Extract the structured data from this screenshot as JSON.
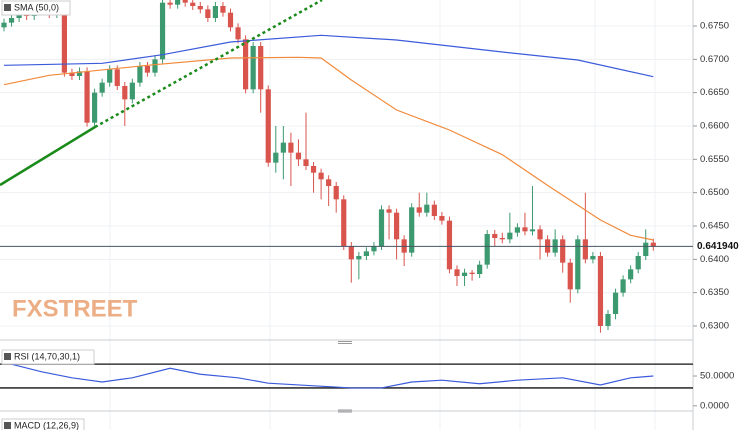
{
  "chart_data": {
    "type": "candlestick",
    "indicator_label": "SMA (50,0)",
    "watermark": "FXSTREET",
    "up_color": "#3d9970",
    "down_color": "#d9544d",
    "ylim": [
      0.6282,
      0.6789
    ],
    "yticks": [
      {
        "value": 0.63,
        "label": "0.6300"
      },
      {
        "value": 0.635,
        "label": "0.6350"
      },
      {
        "value": 0.64,
        "label": "0.6400"
      },
      {
        "value": 0.645,
        "label": "0.6450"
      },
      {
        "value": 0.65,
        "label": "0.6500"
      },
      {
        "value": 0.655,
        "label": "0.6550"
      },
      {
        "value": 0.66,
        "label": "0.6600"
      },
      {
        "value": 0.665,
        "label": "0.6650"
      },
      {
        "value": 0.67,
        "label": "0.6700"
      },
      {
        "value": 0.675,
        "label": "0.6750"
      }
    ],
    "last_price": {
      "value": 0.64194,
      "label": "0.641940"
    },
    "candles": [
      [
        0.6748,
        0.6761,
        0.6742,
        0.6755
      ],
      [
        0.6755,
        0.6768,
        0.6749,
        0.6762
      ],
      [
        0.6762,
        0.6776,
        0.6756,
        0.677
      ],
      [
        0.677,
        0.6776,
        0.6759,
        0.6765
      ],
      [
        0.6765,
        0.6778,
        0.6759,
        0.6772
      ],
      [
        0.6772,
        0.6784,
        0.6766,
        0.6778
      ],
      [
        0.6778,
        0.6784,
        0.6762,
        0.6768
      ],
      [
        0.6768,
        0.678,
        0.6762,
        0.6774
      ],
      [
        0.6774,
        0.678,
        0.6674,
        0.668
      ],
      [
        0.668,
        0.6686,
        0.6669,
        0.6675
      ],
      [
        0.6675,
        0.6688,
        0.6669,
        0.6682
      ],
      [
        0.6682,
        0.6688,
        0.6599,
        0.6605
      ],
      [
        0.6605,
        0.6656,
        0.6599,
        0.665
      ],
      [
        0.665,
        0.6671,
        0.6644,
        0.6665
      ],
      [
        0.6665,
        0.6691,
        0.6659,
        0.6685
      ],
      [
        0.6685,
        0.6691,
        0.6654,
        0.666
      ],
      [
        0.666,
        0.6666,
        0.66,
        0.664
      ],
      [
        0.664,
        0.6671,
        0.6634,
        0.6665
      ],
      [
        0.6665,
        0.6696,
        0.6659,
        0.669
      ],
      [
        0.669,
        0.6696,
        0.6674,
        0.668
      ],
      [
        0.668,
        0.6706,
        0.6674,
        0.67
      ],
      [
        0.67,
        0.6791,
        0.6694,
        0.6785
      ],
      [
        0.6785,
        0.6791,
        0.6776,
        0.6782
      ],
      [
        0.6782,
        0.6796,
        0.6776,
        0.679
      ],
      [
        0.679,
        0.6796,
        0.6779,
        0.6785
      ],
      [
        0.6785,
        0.6791,
        0.6774,
        0.678
      ],
      [
        0.678,
        0.6786,
        0.6769,
        0.6775
      ],
      [
        0.6775,
        0.6781,
        0.6756,
        0.6762
      ],
      [
        0.6762,
        0.6786,
        0.6756,
        0.678
      ],
      [
        0.678,
        0.6786,
        0.6764,
        0.677
      ],
      [
        0.677,
        0.6776,
        0.6742,
        0.6748
      ],
      [
        0.6748,
        0.6754,
        0.6724,
        0.673
      ],
      [
        0.673,
        0.6736,
        0.6649,
        0.6655
      ],
      [
        0.6655,
        0.6726,
        0.6649,
        0.672
      ],
      [
        0.672,
        0.6726,
        0.662,
        0.6655
      ],
      [
        0.6655,
        0.6661,
        0.6539,
        0.6545
      ],
      [
        0.6545,
        0.66,
        0.653,
        0.656
      ],
      [
        0.656,
        0.66,
        0.652,
        0.6575
      ],
      [
        0.6575,
        0.659,
        0.651,
        0.656
      ],
      [
        0.656,
        0.658,
        0.654,
        0.655
      ],
      [
        0.655,
        0.662,
        0.6534,
        0.654
      ],
      [
        0.654,
        0.6546,
        0.65,
        0.653
      ],
      [
        0.653,
        0.6536,
        0.649,
        0.652
      ],
      [
        0.652,
        0.6526,
        0.648,
        0.651
      ],
      [
        0.651,
        0.6516,
        0.647,
        0.649
      ],
      [
        0.649,
        0.6496,
        0.6414,
        0.642
      ],
      [
        0.642,
        0.6426,
        0.6365,
        0.64
      ],
      [
        0.64,
        0.6411,
        0.637,
        0.6405
      ],
      [
        0.6405,
        0.6418,
        0.6399,
        0.6412
      ],
      [
        0.6412,
        0.6426,
        0.6406,
        0.642
      ],
      [
        0.642,
        0.6481,
        0.6414,
        0.6475
      ],
      [
        0.6475,
        0.6481,
        0.643,
        0.647
      ],
      [
        0.647,
        0.6476,
        0.64,
        0.643
      ],
      [
        0.643,
        0.6436,
        0.639,
        0.641
      ],
      [
        0.641,
        0.6484,
        0.6404,
        0.6478
      ],
      [
        0.6478,
        0.65,
        0.6464,
        0.647
      ],
      [
        0.647,
        0.65,
        0.6464,
        0.6482
      ],
      [
        0.6482,
        0.6488,
        0.6459,
        0.6465
      ],
      [
        0.6465,
        0.6471,
        0.6452,
        0.6458
      ],
      [
        0.6458,
        0.6464,
        0.6379,
        0.6385
      ],
      [
        0.6385,
        0.6391,
        0.636,
        0.6375
      ],
      [
        0.6375,
        0.6386,
        0.636,
        0.638
      ],
      [
        0.638,
        0.6384,
        0.6368,
        0.6378
      ],
      [
        0.6378,
        0.6398,
        0.6372,
        0.6392
      ],
      [
        0.6392,
        0.6444,
        0.6386,
        0.6438
      ],
      [
        0.6438,
        0.6444,
        0.642,
        0.6432
      ],
      [
        0.6432,
        0.644,
        0.6424,
        0.643
      ],
      [
        0.643,
        0.647,
        0.6424,
        0.644
      ],
      [
        0.644,
        0.6454,
        0.6434,
        0.6448
      ],
      [
        0.6448,
        0.647,
        0.6436,
        0.6442
      ],
      [
        0.6442,
        0.651,
        0.6436,
        0.6445
      ],
      [
        0.6445,
        0.6451,
        0.64,
        0.643
      ],
      [
        0.643,
        0.6436,
        0.6404,
        0.641
      ],
      [
        0.641,
        0.6445,
        0.6404,
        0.643
      ],
      [
        0.643,
        0.6436,
        0.638,
        0.6395
      ],
      [
        0.6395,
        0.6401,
        0.6335,
        0.6355
      ],
      [
        0.6355,
        0.6436,
        0.6349,
        0.643
      ],
      [
        0.643,
        0.65,
        0.6394,
        0.64
      ],
      [
        0.64,
        0.6411,
        0.6394,
        0.6405
      ],
      [
        0.6405,
        0.6411,
        0.629,
        0.63
      ],
      [
        0.63,
        0.6324,
        0.6294,
        0.6318
      ],
      [
        0.6318,
        0.6356,
        0.631,
        0.635
      ],
      [
        0.635,
        0.6376,
        0.6344,
        0.637
      ],
      [
        0.637,
        0.6391,
        0.6364,
        0.6385
      ],
      [
        0.6385,
        0.6411,
        0.6379,
        0.6405
      ],
      [
        0.6405,
        0.6445,
        0.6399,
        0.6425
      ],
      [
        0.6425,
        0.6431,
        0.6413,
        0.6419
      ]
    ],
    "series": [
      {
        "color": "#f08a3c",
        "x": [
          0,
          6,
          19,
          30,
          39,
          42,
          46,
          52,
          59,
          66,
          72,
          79,
          83,
          86
        ],
        "values": [
          0.6662,
          0.6676,
          0.6691,
          0.6702,
          0.6703,
          0.6702,
          0.6669,
          0.6624,
          0.6594,
          0.6557,
          0.6511,
          0.6459,
          0.6436,
          0.6429
        ]
      },
      {
        "color": "#3b5bdb",
        "x": [
          0,
          13,
          21,
          30,
          42,
          52,
          66,
          76,
          86
        ],
        "values": [
          0.6691,
          0.6694,
          0.6707,
          0.6726,
          0.6736,
          0.6729,
          0.6711,
          0.6699,
          0.6674
        ]
      }
    ],
    "rsi": {
      "label": "RSI (14,70,30,1)",
      "ylim": [
        -7,
        97
      ],
      "yticks": [
        {
          "value": 50,
          "label": "50.0000"
        },
        {
          "value": 0,
          "label": "0.0000"
        }
      ],
      "levels": [
        70,
        30
      ],
      "color": "#3b5bdb",
      "x": [
        0,
        5,
        9,
        13,
        17,
        22,
        26,
        31,
        35,
        39,
        46,
        50,
        54,
        58,
        63,
        68,
        74,
        79,
        83,
        86
      ],
      "values": [
        73,
        57,
        47,
        40,
        47,
        63,
        53,
        47,
        38,
        35,
        30,
        30,
        40,
        43,
        37,
        43,
        47,
        35,
        47,
        50
      ]
    },
    "macd_label": "MACD (12,26,9)"
  }
}
